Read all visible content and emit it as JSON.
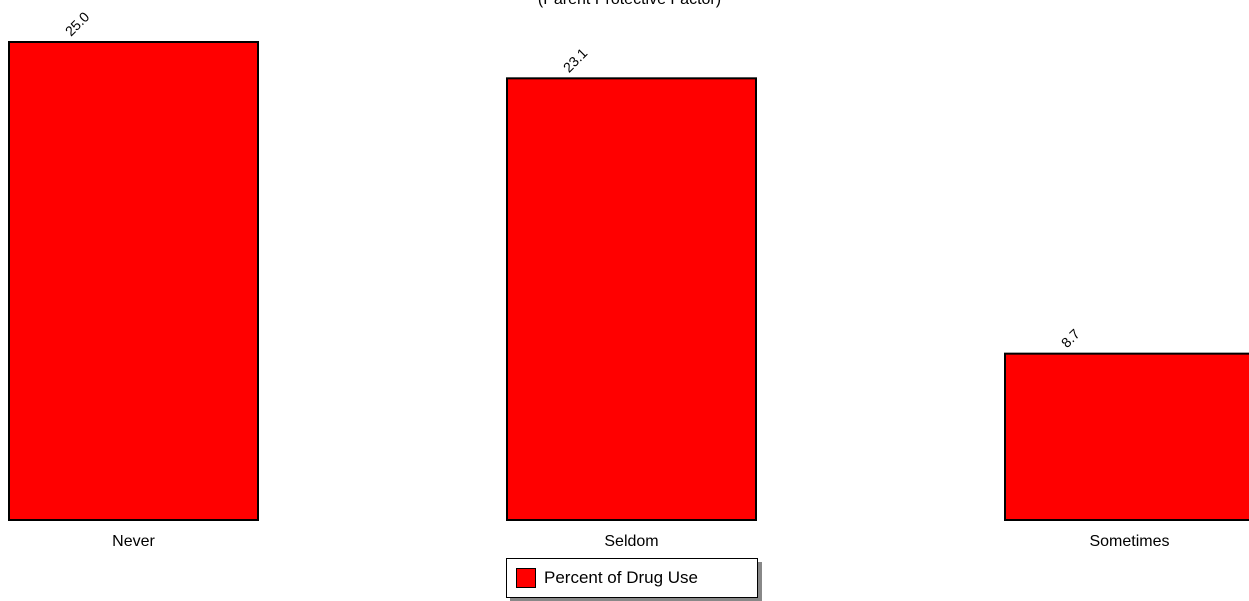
{
  "chart_data": {
    "type": "bar",
    "subtitle": "(Parent Protective Factor)",
    "categories": [
      "Never",
      "Seldom",
      "Sometimes"
    ],
    "series": [
      {
        "name": "Percent of Drug Use",
        "values": [
          25.0,
          23.1,
          8.7
        ]
      }
    ],
    "data_labels": [
      "25.0",
      "23.1",
      "8.7"
    ],
    "ylim": [
      0,
      25.0
    ],
    "grid": false,
    "legend_position": "bottom-center",
    "bar_color": "#ff0000",
    "border_color": "#000000"
  }
}
